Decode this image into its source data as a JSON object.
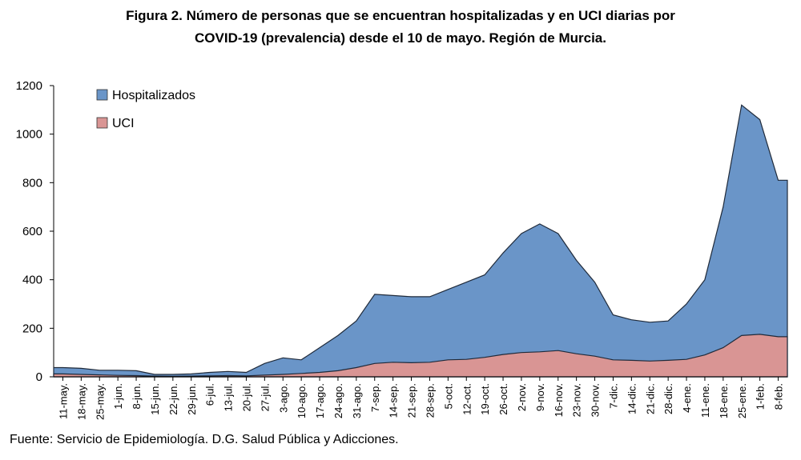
{
  "chart_data": {
    "type": "area",
    "title": "Figura 2. Número de personas que se encuentran hospitalizadas y en UCI diarias por",
    "subtitle": "COVID-19 (prevalencia) desde el 10 de mayo. Región de Murcia.",
    "xlabel": "",
    "ylabel": "",
    "ylim": [
      0,
      1200
    ],
    "yticks": [
      "0",
      "200",
      "400",
      "600",
      "800",
      "1000",
      "1200"
    ],
    "grid": false,
    "legend_position": "top-left",
    "source": "Fuente: Servicio de Epidemiología. D.G. Salud Pública y Adicciones.",
    "x": [
      "11-may.",
      "18-may.",
      "25-may.",
      "1-jun.",
      "8-jun.",
      "15-jun.",
      "22-jun.",
      "29-jun.",
      "6-jul.",
      "13-jul.",
      "20-jul.",
      "27-jul.",
      "3-ago.",
      "10-ago.",
      "17-ago.",
      "24-ago.",
      "31-ago.",
      "7-sep.",
      "14-sep.",
      "21-sep.",
      "28-sep.",
      "5-oct.",
      "12-oct.",
      "19-oct.",
      "26-oct.",
      "2-nov.",
      "9-nov.",
      "16-nov.",
      "23-nov.",
      "30-nov.",
      "7-dic.",
      "14-dic.",
      "21-dic.",
      "28-dic.",
      "4-ene.",
      "11-ene.",
      "18-ene.",
      "25-ene.",
      "1-feb.",
      "8-feb."
    ],
    "series": [
      {
        "name": "Hospitalizados",
        "color": "#6a95c8",
        "values": [
          38,
          35,
          27,
          27,
          25,
          10,
          10,
          12,
          18,
          22,
          18,
          55,
          78,
          70,
          120,
          170,
          230,
          340,
          335,
          330,
          330,
          360,
          390,
          420,
          510,
          590,
          630,
          590,
          480,
          390,
          255,
          235,
          225,
          230,
          300,
          400,
          700,
          1120,
          1060,
          810
        ]
      },
      {
        "name": "UCI",
        "color": "#d99594",
        "values": [
          12,
          10,
          8,
          6,
          5,
          3,
          2,
          3,
          4,
          5,
          4,
          7,
          10,
          14,
          18,
          25,
          38,
          55,
          60,
          58,
          60,
          70,
          72,
          80,
          92,
          100,
          103,
          108,
          95,
          85,
          70,
          68,
          65,
          68,
          72,
          90,
          120,
          170,
          175,
          165
        ]
      }
    ]
  }
}
